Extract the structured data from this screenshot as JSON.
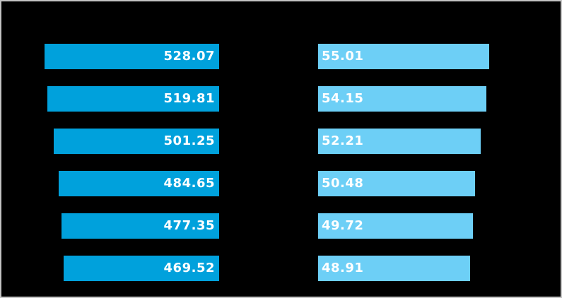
{
  "window": {
    "background_color": "#000000",
    "border_color": "#C3C3C3"
  },
  "chart_data": {
    "type": "bar",
    "orientation": "horizontal",
    "layout": "back-to-back horizontal bar chart (tornado style), 6 rows; left series bars anchored to a shared right edge and grow leftward, right series bars anchored to a shared left edge and grow rightward",
    "gridlines": false,
    "axes_visible": false,
    "category_labels_visible": false,
    "title": "",
    "legend_visible": false,
    "value_labels": {
      "visible": true,
      "color": "#FFFFFF",
      "style": "bold, placed inside the bar at its anchor-opposite end"
    },
    "series": [
      {
        "name": "left",
        "color": "#00A1DC",
        "bar_anchor": "right",
        "label_alignment": "right-inside",
        "values": [
          528.07,
          519.81,
          501.25,
          484.65,
          477.35,
          469.52
        ],
        "value_labels": [
          "528.07",
          "519.81",
          "501.25",
          "484.65",
          "477.35",
          "469.52"
        ]
      },
      {
        "name": "right",
        "color": "#6DCFF6",
        "bar_anchor": "left",
        "label_alignment": "left-inside",
        "values": [
          55.01,
          54.15,
          52.21,
          50.48,
          49.72,
          48.91
        ],
        "value_labels": [
          "55.01",
          "54.15",
          "52.21",
          "50.48",
          "49.72",
          "48.91"
        ]
      }
    ]
  }
}
